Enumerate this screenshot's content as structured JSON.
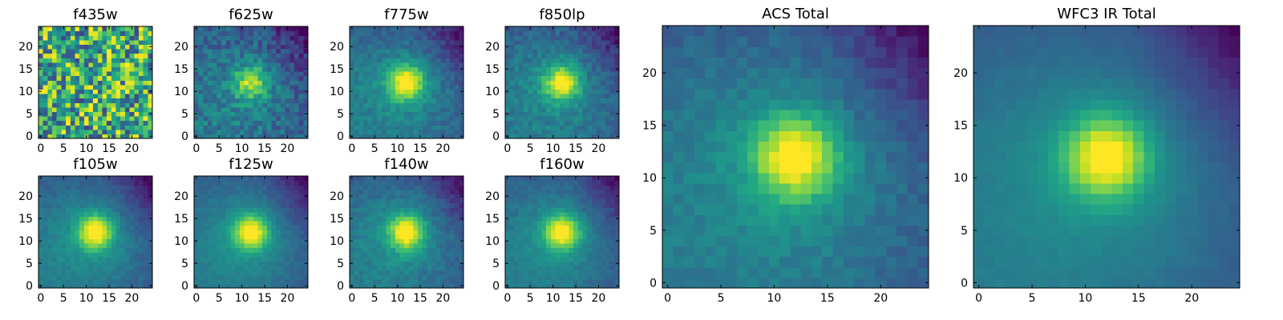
{
  "chart_data": [
    {
      "type": "heatmap",
      "title": "f435w",
      "xlim": [
        0,
        24
      ],
      "ylim": [
        0,
        24
      ],
      "xticks": [
        0,
        5,
        10,
        15,
        20
      ],
      "yticks": [
        0,
        5,
        10,
        15,
        20
      ],
      "peak": [
        12,
        12
      ],
      "noise": 0.9,
      "signal": 0.05,
      "seed": 11,
      "colormap": "viridis"
    },
    {
      "type": "heatmap",
      "title": "f625w",
      "xlim": [
        0,
        24
      ],
      "ylim": [
        0,
        24
      ],
      "xticks": [
        0,
        5,
        10,
        15,
        20
      ],
      "yticks": [
        0,
        5,
        10,
        15,
        20
      ],
      "peak": [
        12,
        12
      ],
      "noise": 0.35,
      "signal": 0.75,
      "seed": 23,
      "colormap": "viridis"
    },
    {
      "type": "heatmap",
      "title": "f775w",
      "xlim": [
        0,
        24
      ],
      "ylim": [
        0,
        24
      ],
      "xticks": [
        0,
        5,
        10,
        15,
        20
      ],
      "yticks": [
        0,
        5,
        10,
        15,
        20
      ],
      "peak": [
        12,
        12
      ],
      "noise": 0.2,
      "signal": 1.0,
      "seed": 37,
      "colormap": "viridis"
    },
    {
      "type": "heatmap",
      "title": "f850lp",
      "xlim": [
        0,
        24
      ],
      "ylim": [
        0,
        24
      ],
      "xticks": [
        0,
        5,
        10,
        15,
        20
      ],
      "yticks": [
        0,
        5,
        10,
        15,
        20
      ],
      "peak": [
        12,
        12
      ],
      "noise": 0.22,
      "signal": 0.95,
      "seed": 41,
      "colormap": "viridis"
    },
    {
      "type": "heatmap",
      "title": "f105w",
      "xlim": [
        0,
        24
      ],
      "ylim": [
        0,
        24
      ],
      "xticks": [
        0,
        5,
        10,
        15,
        20
      ],
      "yticks": [
        0,
        5,
        10,
        15,
        20
      ],
      "peak": [
        12,
        12
      ],
      "noise": 0.12,
      "signal": 1.0,
      "seed": 53,
      "colormap": "viridis"
    },
    {
      "type": "heatmap",
      "title": "f125w",
      "xlim": [
        0,
        24
      ],
      "ylim": [
        0,
        24
      ],
      "xticks": [
        0,
        5,
        10,
        15,
        20
      ],
      "yticks": [
        0,
        5,
        10,
        15,
        20
      ],
      "peak": [
        12,
        12
      ],
      "noise": 0.1,
      "signal": 1.0,
      "seed": 67,
      "colormap": "viridis"
    },
    {
      "type": "heatmap",
      "title": "f140w",
      "xlim": [
        0,
        24
      ],
      "ylim": [
        0,
        24
      ],
      "xticks": [
        0,
        5,
        10,
        15,
        20
      ],
      "yticks": [
        0,
        5,
        10,
        15,
        20
      ],
      "peak": [
        12,
        12
      ],
      "noise": 0.16,
      "signal": 1.0,
      "seed": 71,
      "colormap": "viridis"
    },
    {
      "type": "heatmap",
      "title": "f160w",
      "xlim": [
        0,
        24
      ],
      "ylim": [
        0,
        24
      ],
      "xticks": [
        0,
        5,
        10,
        15,
        20
      ],
      "yticks": [
        0,
        5,
        10,
        15,
        20
      ],
      "peak": [
        12,
        12
      ],
      "noise": 0.12,
      "signal": 1.0,
      "seed": 83,
      "colormap": "viridis"
    },
    {
      "type": "heatmap",
      "title": "ACS Total",
      "xlim": [
        0,
        24
      ],
      "ylim": [
        0,
        24
      ],
      "xticks": [
        0,
        5,
        10,
        15,
        20
      ],
      "yticks": [
        0,
        5,
        10,
        15,
        20
      ],
      "peak": [
        12,
        12
      ],
      "noise": 0.14,
      "signal": 1.0,
      "seed": 97,
      "colormap": "viridis"
    },
    {
      "type": "heatmap",
      "title": "WFC3 IR Total",
      "xlim": [
        0,
        24
      ],
      "ylim": [
        0,
        24
      ],
      "xticks": [
        0,
        5,
        10,
        15,
        20
      ],
      "yticks": [
        0,
        5,
        10,
        15,
        20
      ],
      "peak": [
        12,
        12
      ],
      "noise": 0.05,
      "signal": 1.0,
      "seed": 101,
      "colormap": "viridis"
    }
  ]
}
